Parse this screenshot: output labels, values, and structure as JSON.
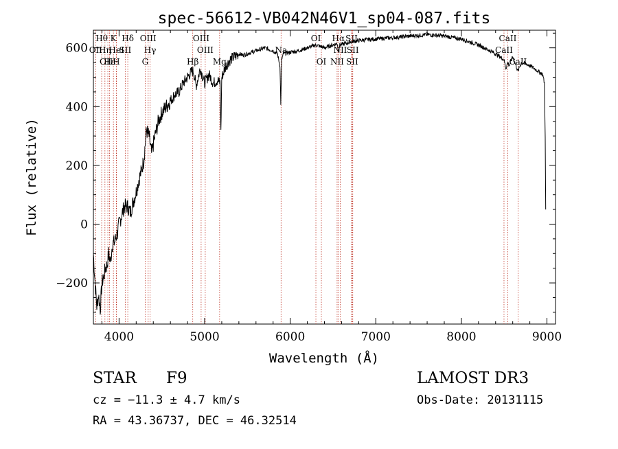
{
  "chart_data": {
    "type": "line",
    "title": "spec-56612-VB042N46V1_sp04-087.fits",
    "xlabel": "Wavelength (Å)",
    "ylabel": "Flux (relative)",
    "xlim": [
      3700,
      9100
    ],
    "ylim": [
      -340,
      660
    ],
    "xticks": [
      4000,
      5000,
      6000,
      7000,
      8000,
      9000
    ],
    "yticks": [
      -200,
      0,
      200,
      400,
      600
    ],
    "grid": false,
    "series": [
      {
        "name": "flux",
        "x": [
          3700,
          3720,
          3740,
          3760,
          3780,
          3800,
          3820,
          3840,
          3860,
          3880,
          3900,
          3920,
          3950,
          3980,
          4000,
          4030,
          4060,
          4100,
          4130,
          4170,
          4200,
          4230,
          4260,
          4290,
          4320,
          4350,
          4380,
          4420,
          4460,
          4500,
          4550,
          4600,
          4650,
          4700,
          4750,
          4800,
          4850,
          4870,
          4900,
          4950,
          5000,
          5050,
          5100,
          5150,
          5180,
          5190,
          5200,
          5250,
          5300,
          5350,
          5400,
          5450,
          5500,
          5600,
          5700,
          5800,
          5850,
          5880,
          5890,
          5900,
          5920,
          6000,
          6100,
          6200,
          6300,
          6350,
          6400,
          6500,
          6550,
          6562,
          6580,
          6650,
          6700,
          6800,
          6900,
          7000,
          7200,
          7400,
          7600,
          7800,
          8000,
          8200,
          8400,
          8498,
          8520,
          8542,
          8560,
          8600,
          8662,
          8700,
          8800,
          8900,
          8950,
          8970,
          8980,
          8985
        ],
        "values": [
          -100,
          -200,
          -280,
          -240,
          -290,
          -200,
          -180,
          -150,
          -140,
          -100,
          -130,
          -70,
          -60,
          -30,
          0,
          30,
          60,
          60,
          40,
          80,
          110,
          150,
          180,
          220,
          320,
          300,
          240,
          300,
          350,
          380,
          400,
          420,
          440,
          450,
          480,
          500,
          520,
          520,
          470,
          530,
          480,
          510,
          480,
          490,
          480,
          310,
          500,
          540,
          560,
          570,
          580,
          575,
          580,
          590,
          600,
          590,
          580,
          540,
          410,
          560,
          580,
          585,
          590,
          600,
          610,
          605,
          600,
          610,
          615,
          590,
          610,
          615,
          620,
          625,
          628,
          630,
          635,
          640,
          645,
          640,
          630,
          610,
          580,
          560,
          530,
          550,
          540,
          570,
          520,
          550,
          540,
          520,
          510,
          480,
          300,
          50
        ]
      }
    ],
    "line_markers": [
      {
        "label": "Hθ",
        "x": 3797,
        "row": 1
      },
      {
        "label": "OII",
        "x": 3727,
        "row": 2
      },
      {
        "label": "OIII",
        "x": 3869,
        "row": 3
      },
      {
        "label": "Hε",
        "x": 3889,
        "row": 3
      },
      {
        "label": "K",
        "x": 3934,
        "row": 1
      },
      {
        "label": "HeI",
        "x": 3970,
        "row": 2
      },
      {
        "label": "Hη",
        "x": 3835,
        "row": 2
      },
      {
        "label": "H",
        "x": 3968,
        "row": 3
      },
      {
        "label": "SII",
        "x": 4072,
        "row": 2
      },
      {
        "label": "Hδ",
        "x": 4102,
        "row": 1
      },
      {
        "label": "OIII",
        "x": 4340,
        "row": 1
      },
      {
        "label": "Hγ",
        "x": 4363,
        "row": 2
      },
      {
        "label": "G",
        "x": 4305,
        "row": 3
      },
      {
        "label": "OIII",
        "x": 4959,
        "row": 1
      },
      {
        "label": "OIII",
        "x": 5007,
        "row": 2
      },
      {
        "label": "Hβ",
        "x": 4861,
        "row": 3
      },
      {
        "label": "Mg",
        "x": 5175,
        "row": 3
      },
      {
        "label": "Na",
        "x": 5893,
        "row": 2
      },
      {
        "label": "OI",
        "x": 6300,
        "row": 1
      },
      {
        "label": "OI",
        "x": 6364,
        "row": 3
      },
      {
        "label": "Hα",
        "x": 6563,
        "row": 1
      },
      {
        "label": "SII",
        "x": 6717,
        "row": 1
      },
      {
        "label": "NII",
        "x": 6584,
        "row": 2
      },
      {
        "label": "SII",
        "x": 6731,
        "row": 2
      },
      {
        "label": "NII",
        "x": 6548,
        "row": 3
      },
      {
        "label": "SII",
        "x": 6724,
        "row": 3
      },
      {
        "label": "CaII",
        "x": 8542,
        "row": 1
      },
      {
        "label": "CaII",
        "x": 8498,
        "row": 2
      },
      {
        "label": "CaII",
        "x": 8662,
        "row": 3
      }
    ]
  },
  "info": {
    "object_class": "STAR",
    "subclass": "F9",
    "survey": "LAMOST DR3",
    "cz": "cz = −11.3 ± 4.7 km/s",
    "obs_date": "Obs-Date: 20131115",
    "coords": "RA =  43.36737, DEC =  46.32514"
  },
  "colors": {
    "spectrum": "#000000",
    "marker_line": "#c0392b",
    "text": "#000000",
    "background": "#ffffff"
  }
}
